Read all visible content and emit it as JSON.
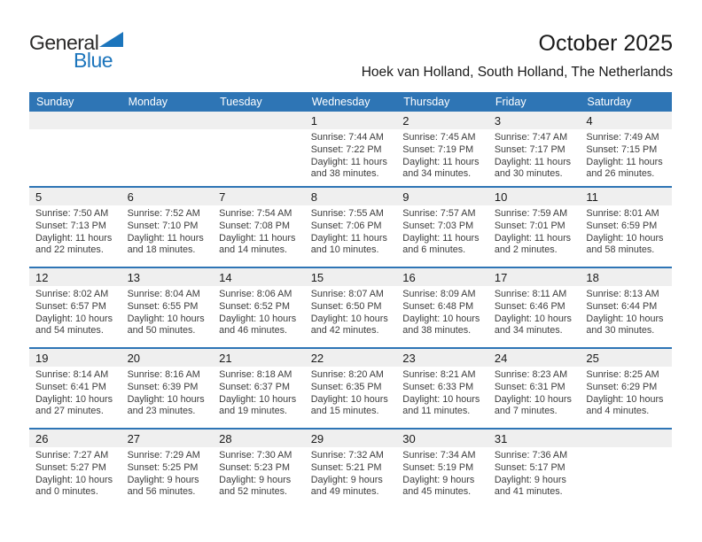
{
  "logo": {
    "general": "General",
    "blue": "Blue"
  },
  "title": "October 2025",
  "subtitle": "Hoek van Holland, South Holland, The Netherlands",
  "colors": {
    "header_blue": "#2E75B5",
    "band_gray": "#EFEFEF",
    "logo_blue": "#1C75BC",
    "logo_dark": "#2B2A29",
    "text_dark": "#1A1A1A",
    "detail_gray": "#3C3C3C"
  },
  "day_headers": [
    "Sunday",
    "Monday",
    "Tuesday",
    "Wednesday",
    "Thursday",
    "Friday",
    "Saturday"
  ],
  "weeks": [
    [
      {
        "day": ""
      },
      {
        "day": ""
      },
      {
        "day": ""
      },
      {
        "day": "1",
        "sunrise": "Sunrise: 7:44 AM",
        "sunset": "Sunset: 7:22 PM",
        "daylight1": "Daylight: 11 hours",
        "daylight2": "and 38 minutes."
      },
      {
        "day": "2",
        "sunrise": "Sunrise: 7:45 AM",
        "sunset": "Sunset: 7:19 PM",
        "daylight1": "Daylight: 11 hours",
        "daylight2": "and 34 minutes."
      },
      {
        "day": "3",
        "sunrise": "Sunrise: 7:47 AM",
        "sunset": "Sunset: 7:17 PM",
        "daylight1": "Daylight: 11 hours",
        "daylight2": "and 30 minutes."
      },
      {
        "day": "4",
        "sunrise": "Sunrise: 7:49 AM",
        "sunset": "Sunset: 7:15 PM",
        "daylight1": "Daylight: 11 hours",
        "daylight2": "and 26 minutes."
      }
    ],
    [
      {
        "day": "5",
        "sunrise": "Sunrise: 7:50 AM",
        "sunset": "Sunset: 7:13 PM",
        "daylight1": "Daylight: 11 hours",
        "daylight2": "and 22 minutes."
      },
      {
        "day": "6",
        "sunrise": "Sunrise: 7:52 AM",
        "sunset": "Sunset: 7:10 PM",
        "daylight1": "Daylight: 11 hours",
        "daylight2": "and 18 minutes."
      },
      {
        "day": "7",
        "sunrise": "Sunrise: 7:54 AM",
        "sunset": "Sunset: 7:08 PM",
        "daylight1": "Daylight: 11 hours",
        "daylight2": "and 14 minutes."
      },
      {
        "day": "8",
        "sunrise": "Sunrise: 7:55 AM",
        "sunset": "Sunset: 7:06 PM",
        "daylight1": "Daylight: 11 hours",
        "daylight2": "and 10 minutes."
      },
      {
        "day": "9",
        "sunrise": "Sunrise: 7:57 AM",
        "sunset": "Sunset: 7:03 PM",
        "daylight1": "Daylight: 11 hours",
        "daylight2": "and 6 minutes."
      },
      {
        "day": "10",
        "sunrise": "Sunrise: 7:59 AM",
        "sunset": "Sunset: 7:01 PM",
        "daylight1": "Daylight: 11 hours",
        "daylight2": "and 2 minutes."
      },
      {
        "day": "11",
        "sunrise": "Sunrise: 8:01 AM",
        "sunset": "Sunset: 6:59 PM",
        "daylight1": "Daylight: 10 hours",
        "daylight2": "and 58 minutes."
      }
    ],
    [
      {
        "day": "12",
        "sunrise": "Sunrise: 8:02 AM",
        "sunset": "Sunset: 6:57 PM",
        "daylight1": "Daylight: 10 hours",
        "daylight2": "and 54 minutes."
      },
      {
        "day": "13",
        "sunrise": "Sunrise: 8:04 AM",
        "sunset": "Sunset: 6:55 PM",
        "daylight1": "Daylight: 10 hours",
        "daylight2": "and 50 minutes."
      },
      {
        "day": "14",
        "sunrise": "Sunrise: 8:06 AM",
        "sunset": "Sunset: 6:52 PM",
        "daylight1": "Daylight: 10 hours",
        "daylight2": "and 46 minutes."
      },
      {
        "day": "15",
        "sunrise": "Sunrise: 8:07 AM",
        "sunset": "Sunset: 6:50 PM",
        "daylight1": "Daylight: 10 hours",
        "daylight2": "and 42 minutes."
      },
      {
        "day": "16",
        "sunrise": "Sunrise: 8:09 AM",
        "sunset": "Sunset: 6:48 PM",
        "daylight1": "Daylight: 10 hours",
        "daylight2": "and 38 minutes."
      },
      {
        "day": "17",
        "sunrise": "Sunrise: 8:11 AM",
        "sunset": "Sunset: 6:46 PM",
        "daylight1": "Daylight: 10 hours",
        "daylight2": "and 34 minutes."
      },
      {
        "day": "18",
        "sunrise": "Sunrise: 8:13 AM",
        "sunset": "Sunset: 6:44 PM",
        "daylight1": "Daylight: 10 hours",
        "daylight2": "and 30 minutes."
      }
    ],
    [
      {
        "day": "19",
        "sunrise": "Sunrise: 8:14 AM",
        "sunset": "Sunset: 6:41 PM",
        "daylight1": "Daylight: 10 hours",
        "daylight2": "and 27 minutes."
      },
      {
        "day": "20",
        "sunrise": "Sunrise: 8:16 AM",
        "sunset": "Sunset: 6:39 PM",
        "daylight1": "Daylight: 10 hours",
        "daylight2": "and 23 minutes."
      },
      {
        "day": "21",
        "sunrise": "Sunrise: 8:18 AM",
        "sunset": "Sunset: 6:37 PM",
        "daylight1": "Daylight: 10 hours",
        "daylight2": "and 19 minutes."
      },
      {
        "day": "22",
        "sunrise": "Sunrise: 8:20 AM",
        "sunset": "Sunset: 6:35 PM",
        "daylight1": "Daylight: 10 hours",
        "daylight2": "and 15 minutes."
      },
      {
        "day": "23",
        "sunrise": "Sunrise: 8:21 AM",
        "sunset": "Sunset: 6:33 PM",
        "daylight1": "Daylight: 10 hours",
        "daylight2": "and 11 minutes."
      },
      {
        "day": "24",
        "sunrise": "Sunrise: 8:23 AM",
        "sunset": "Sunset: 6:31 PM",
        "daylight1": "Daylight: 10 hours",
        "daylight2": "and 7 minutes."
      },
      {
        "day": "25",
        "sunrise": "Sunrise: 8:25 AM",
        "sunset": "Sunset: 6:29 PM",
        "daylight1": "Daylight: 10 hours",
        "daylight2": "and 4 minutes."
      }
    ],
    [
      {
        "day": "26",
        "sunrise": "Sunrise: 7:27 AM",
        "sunset": "Sunset: 5:27 PM",
        "daylight1": "Daylight: 10 hours",
        "daylight2": "and 0 minutes."
      },
      {
        "day": "27",
        "sunrise": "Sunrise: 7:29 AM",
        "sunset": "Sunset: 5:25 PM",
        "daylight1": "Daylight: 9 hours",
        "daylight2": "and 56 minutes."
      },
      {
        "day": "28",
        "sunrise": "Sunrise: 7:30 AM",
        "sunset": "Sunset: 5:23 PM",
        "daylight1": "Daylight: 9 hours",
        "daylight2": "and 52 minutes."
      },
      {
        "day": "29",
        "sunrise": "Sunrise: 7:32 AM",
        "sunset": "Sunset: 5:21 PM",
        "daylight1": "Daylight: 9 hours",
        "daylight2": "and 49 minutes."
      },
      {
        "day": "30",
        "sunrise": "Sunrise: 7:34 AM",
        "sunset": "Sunset: 5:19 PM",
        "daylight1": "Daylight: 9 hours",
        "daylight2": "and 45 minutes."
      },
      {
        "day": "31",
        "sunrise": "Sunrise: 7:36 AM",
        "sunset": "Sunset: 5:17 PM",
        "daylight1": "Daylight: 9 hours",
        "daylight2": "and 41 minutes."
      },
      {
        "day": ""
      }
    ]
  ]
}
